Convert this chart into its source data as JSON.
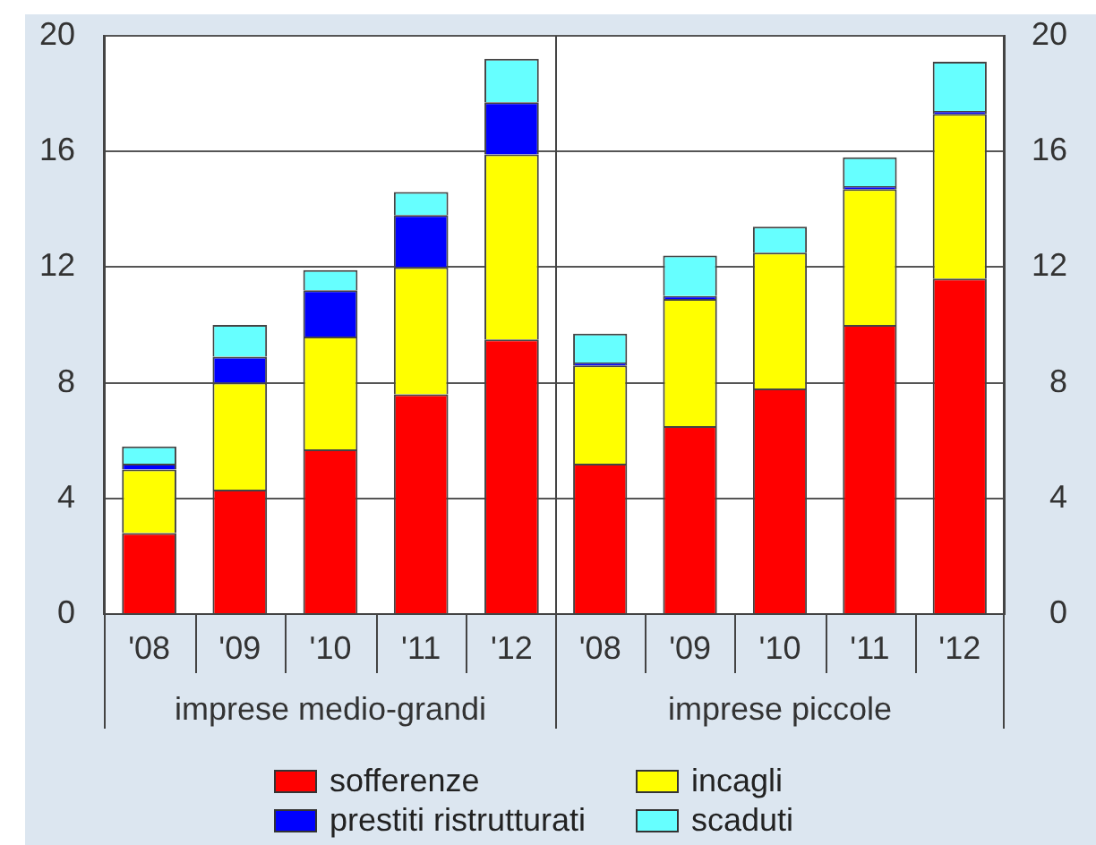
{
  "chart_data": [
    {
      "type": "bar",
      "stacked": true,
      "categories": [
        "'08",
        "'09",
        "'10",
        "'11",
        "'12"
      ],
      "xlabel": "imprese medio-grandi",
      "series": [
        {
          "name": "sofferenze",
          "color": "#ff0000",
          "values": [
            2.8,
            4.3,
            5.7,
            7.6,
            9.5
          ]
        },
        {
          "name": "incagli",
          "color": "#ffff00",
          "values": [
            2.2,
            3.7,
            3.9,
            4.4,
            6.4
          ]
        },
        {
          "name": "prestiti ristrutturati",
          "color": "#0000ff",
          "values": [
            0.2,
            0.9,
            1.6,
            1.8,
            1.8
          ]
        },
        {
          "name": "scaduti",
          "color": "#66ffff",
          "values": [
            0.6,
            1.1,
            0.7,
            0.8,
            1.5
          ]
        }
      ],
      "ylim": [
        0,
        20
      ],
      "yticks": [
        0,
        4,
        8,
        12,
        16,
        20
      ],
      "grid": "y",
      "legend": "bottom"
    },
    {
      "type": "bar",
      "stacked": true,
      "categories": [
        "'08",
        "'09",
        "'10",
        "'11",
        "'12"
      ],
      "xlabel": "imprese piccole",
      "series": [
        {
          "color": "#ff0000",
          "values": [
            5.2,
            6.5,
            7.8,
            10.0,
            11.6
          ]
        },
        {
          "color": "#ffff00",
          "values": [
            3.4,
            4.4,
            4.7,
            4.7,
            5.7
          ]
        },
        {
          "color": "#0000ff",
          "values": [
            0.1,
            0.1,
            null,
            0.1,
            0.1
          ]
        },
        {
          "color": "#66ffff",
          "values": [
            1.0,
            1.4,
            0.9,
            1.0,
            1.7
          ]
        }
      ],
      "ylim": [
        0,
        20
      ],
      "yticks": [
        0,
        4,
        8,
        12,
        16,
        20
      ],
      "grid": "y"
    }
  ]
}
